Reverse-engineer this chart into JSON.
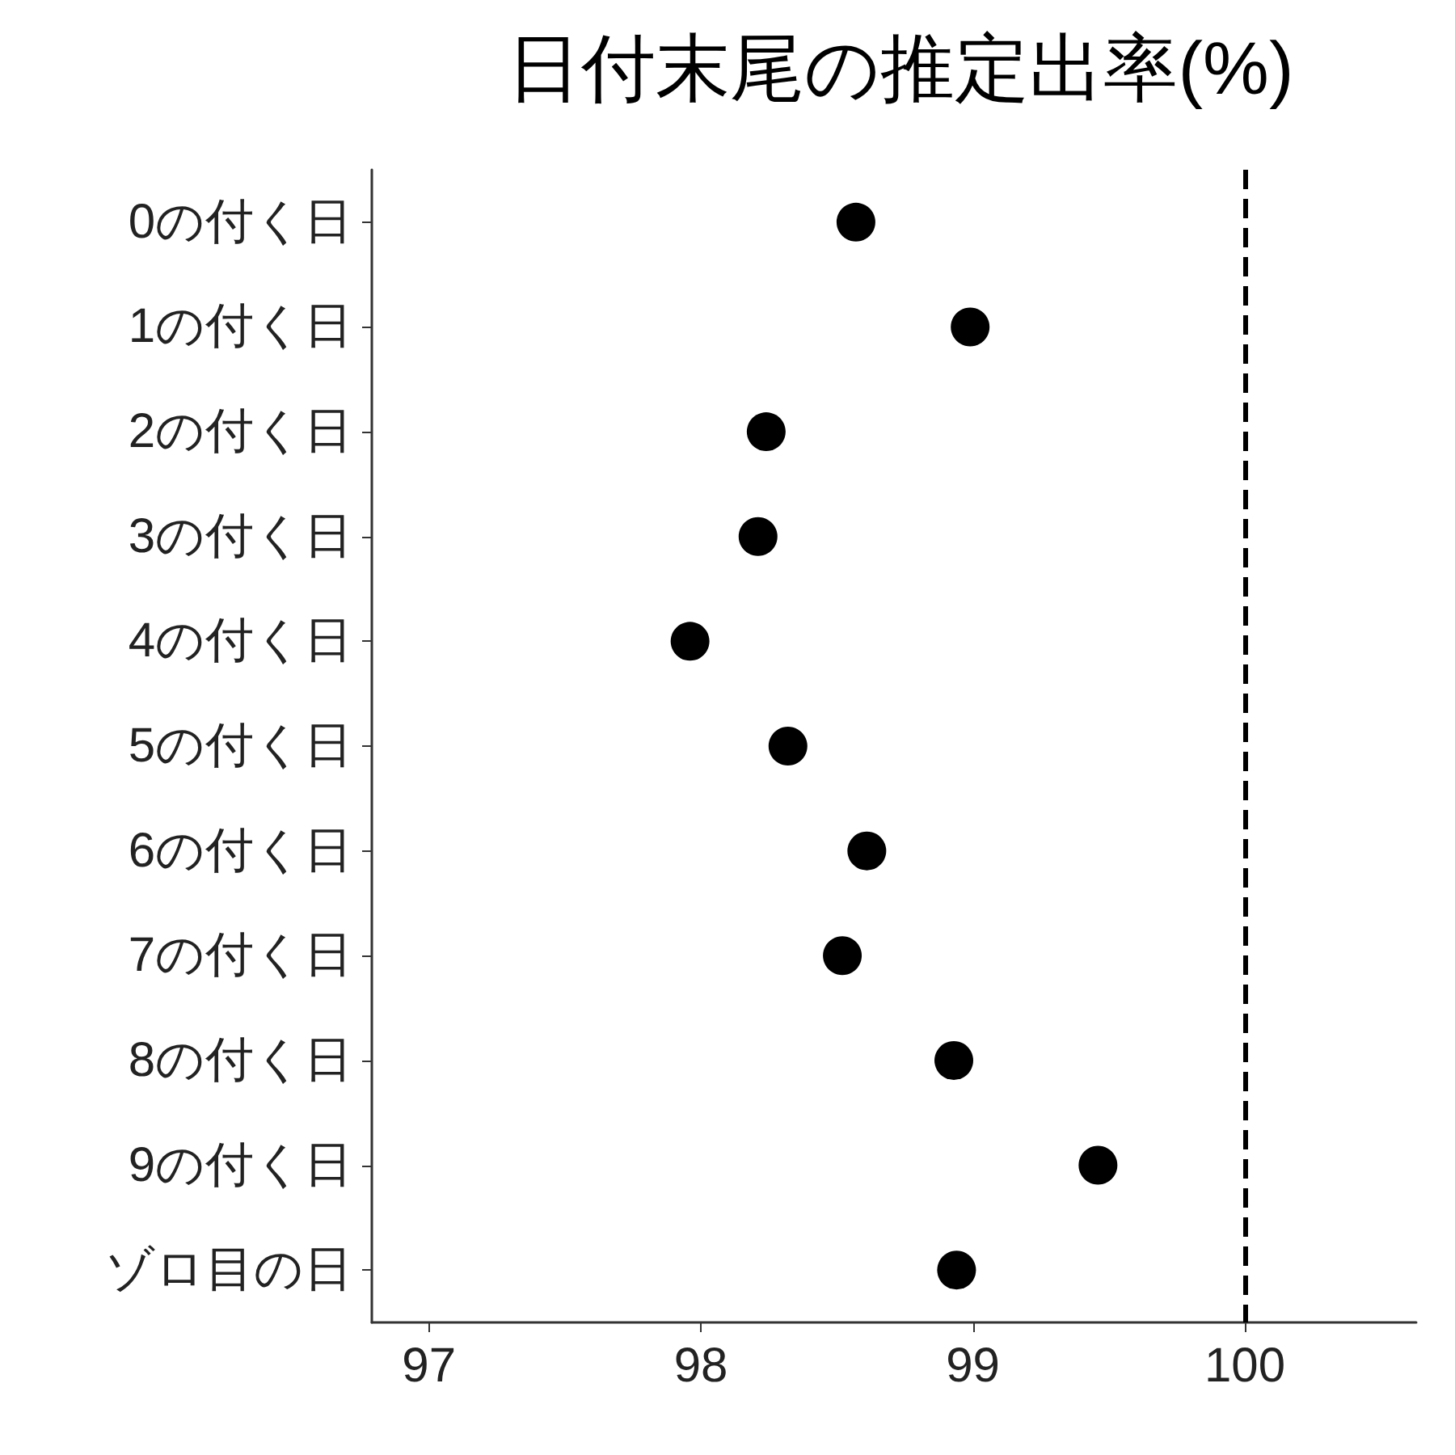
{
  "chart_data": {
    "type": "scatter",
    "orientation": "horizontal",
    "title": "日付末尾の推定出率(%)",
    "categories": [
      "0の付く日",
      "1の付く日",
      "2の付く日",
      "3の付く日",
      "4の付く日",
      "5の付く日",
      "6の付く日",
      "7の付く日",
      "8の付く日",
      "9の付く日",
      "ゾロ目の日"
    ],
    "series": [
      {
        "color": "#000000",
        "values": [
          98.57,
          98.99,
          98.24,
          98.21,
          97.96,
          98.32,
          98.61,
          98.52,
          98.93,
          99.46,
          98.94
        ]
      }
    ],
    "xlim": [
      96.79,
      100.63
    ],
    "xticks": [
      97,
      98,
      99,
      100
    ],
    "ref_lines": [
      {
        "axis": "x",
        "value": 100,
        "color": "#000000",
        "line_style": "dashed"
      }
    ],
    "grid": false,
    "marker": "circle"
  }
}
